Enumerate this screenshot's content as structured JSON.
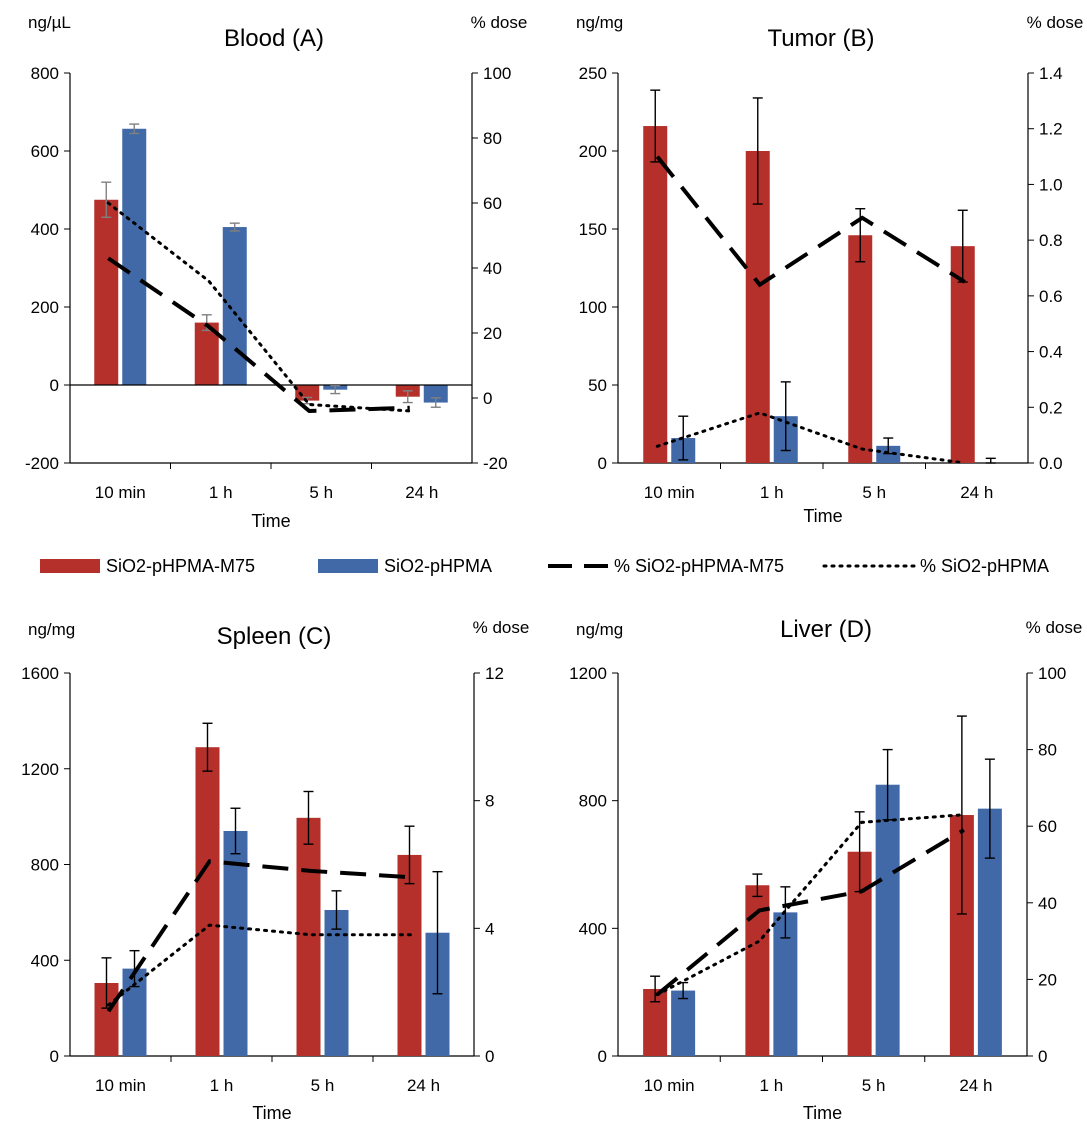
{
  "legend": [
    {
      "label": "SiO2-pHPMA-M75",
      "kind": "bar",
      "color": "#b5302b"
    },
    {
      "label": "SiO2-pHPMA",
      "kind": "bar",
      "color": "#4169a7"
    },
    {
      "label": "% SiO2-pHPMA-M75",
      "kind": "dash",
      "color": "#000000"
    },
    {
      "label": "% SiO2-pHPMA",
      "kind": "dot",
      "color": "#000000"
    }
  ],
  "chart_data": [
    {
      "type": "bar",
      "title": "Blood (A)",
      "y_unit_left": "ng/µL",
      "y_unit_right": "% dose",
      "xlabel": "Time",
      "categories": [
        "10 min",
        "1 h",
        "5 h",
        "24 h"
      ],
      "ylim": [
        -200,
        800
      ],
      "yticks": [
        "-200",
        "0",
        "200",
        "400",
        "600",
        "800"
      ],
      "y2lim": [
        -20,
        100
      ],
      "y2ticks": [
        "-20",
        "0",
        "20",
        "40",
        "60",
        "80",
        "100"
      ],
      "zero_line": true,
      "error_color": "#808080",
      "series": [
        {
          "name": "SiO2-pHPMA-M75",
          "values": [
            475,
            160,
            -40,
            -30
          ],
          "errors": [
            45,
            20,
            8,
            15
          ]
        },
        {
          "name": "SiO2-pHPMA",
          "values": [
            657,
            405,
            -12,
            -45
          ],
          "errors": [
            12,
            10,
            10,
            12
          ]
        }
      ],
      "lines": [
        {
          "name": "% SiO2-pHPMA-M75",
          "style": "dash",
          "values": [
            43,
            22,
            -4,
            -3
          ]
        },
        {
          "name": "% SiO2-pHPMA",
          "style": "dot",
          "values": [
            60,
            36,
            -2,
            -4
          ]
        }
      ]
    },
    {
      "type": "bar",
      "title": "Tumor (B)",
      "y_unit_left": "ng/mg",
      "y_unit_right": "% dose",
      "xlabel": "Time",
      "categories": [
        "10 min",
        "1 h",
        "5 h",
        "24 h"
      ],
      "ylim": [
        0,
        250
      ],
      "yticks": [
        "0",
        "50",
        "100",
        "150",
        "200",
        "250"
      ],
      "y2lim": [
        0,
        1.4
      ],
      "y2ticks": [
        "0.0",
        "0.2",
        "0.4",
        "0.6",
        "0.8",
        "1.0",
        "1.2",
        "1.4"
      ],
      "zero_line": false,
      "error_color": "#000000",
      "series": [
        {
          "name": "SiO2-pHPMA-M75",
          "values": [
            216,
            200,
            146,
            139
          ],
          "errors": [
            23,
            34,
            17,
            23
          ]
        },
        {
          "name": "SiO2-pHPMA",
          "values": [
            16,
            30,
            11,
            0
          ],
          "errors": [
            14,
            22,
            5,
            3
          ]
        }
      ],
      "lines": [
        {
          "name": "% SiO2-pHPMA-M75",
          "style": "dash",
          "values": [
            1.1,
            0.64,
            0.88,
            0.65
          ]
        },
        {
          "name": "% SiO2-pHPMA",
          "style": "dot",
          "values": [
            0.06,
            0.18,
            0.05,
            0.0
          ]
        }
      ]
    },
    {
      "type": "bar",
      "title": "Spleen (C)",
      "y_unit_left": "ng/mg",
      "y_unit_right": "% dose",
      "xlabel": "Time",
      "categories": [
        "10 min",
        "1 h",
        "5 h",
        "24 h"
      ],
      "ylim": [
        0,
        1600
      ],
      "yticks": [
        "0",
        "400",
        "800",
        "1200",
        "1600"
      ],
      "y2lim": [
        0,
        12
      ],
      "y2ticks": [
        "0",
        "4",
        "8",
        "12"
      ],
      "zero_line": false,
      "error_color": "#000000",
      "series": [
        {
          "name": "SiO2-pHPMA-M75",
          "values": [
            305,
            1290,
            995,
            840
          ],
          "errors": [
            105,
            100,
            110,
            120
          ]
        },
        {
          "name": "SiO2-pHPMA",
          "values": [
            365,
            940,
            610,
            515
          ],
          "errors": [
            75,
            95,
            80,
            255
          ]
        }
      ],
      "lines": [
        {
          "name": "% SiO2-pHPMA-M75",
          "style": "dash",
          "values": [
            1.4,
            6.1,
            5.8,
            5.6
          ]
        },
        {
          "name": "% SiO2-pHPMA",
          "style": "dot",
          "values": [
            1.6,
            4.1,
            3.8,
            3.8
          ]
        }
      ]
    },
    {
      "type": "bar",
      "title": "Liver (D)",
      "y_unit_left": "ng/mg",
      "y_unit_right": "% dose",
      "xlabel": "Time",
      "categories": [
        "10 min",
        "1 h",
        "5 h",
        "24 h"
      ],
      "ylim": [
        0,
        1200
      ],
      "yticks": [
        "0",
        "400",
        "800",
        "1200"
      ],
      "y2lim": [
        0,
        100
      ],
      "y2ticks": [
        "0",
        "20",
        "40",
        "60",
        "80",
        "100"
      ],
      "zero_line": false,
      "error_color": "#000000",
      "series": [
        {
          "name": "SiO2-pHPMA-M75",
          "values": [
            210,
            535,
            640,
            755
          ],
          "errors": [
            40,
            35,
            125,
            310
          ]
        },
        {
          "name": "SiO2-pHPMA",
          "values": [
            205,
            450,
            850,
            775
          ],
          "errors": [
            25,
            80,
            110,
            155
          ]
        }
      ],
      "lines": [
        {
          "name": "% SiO2-pHPMA-M75",
          "style": "dash",
          "values": [
            16,
            38,
            43,
            59
          ]
        },
        {
          "name": "% SiO2-pHPMA",
          "style": "dot",
          "values": [
            16,
            30,
            61,
            63
          ]
        }
      ]
    }
  ]
}
